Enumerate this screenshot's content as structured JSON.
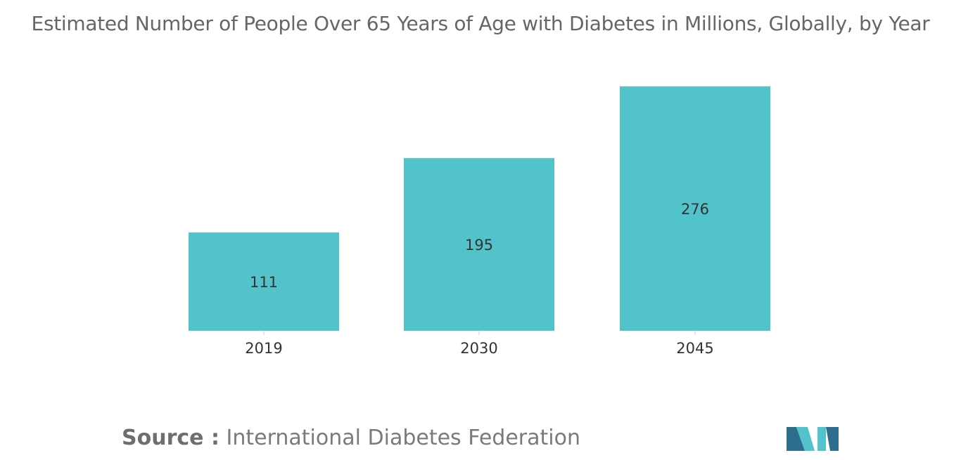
{
  "chart_data": {
    "type": "bar",
    "title": "Estimated Number of People Over 65 Years of Age with Diabetes in Millions, Globally, by Year",
    "categories": [
      "2019",
      "2030",
      "2045"
    ],
    "values": [
      111,
      195,
      276
    ],
    "xlabel": "",
    "ylabel": "",
    "ylim": [
      0,
      276
    ],
    "grid": false,
    "legend": "none",
    "bar_color": "#53c3cb",
    "data_labels": [
      "111",
      "195",
      "276"
    ]
  },
  "source": {
    "label": "Source :",
    "text": "International Diabetes Federation"
  },
  "colors": {
    "title": "#666666",
    "label": "#333333",
    "axis": "#cccccc",
    "logo_dark": "#2d6e8e",
    "logo_light": "#53c3cb"
  },
  "logo": {
    "icon": "company-logo-icon"
  }
}
